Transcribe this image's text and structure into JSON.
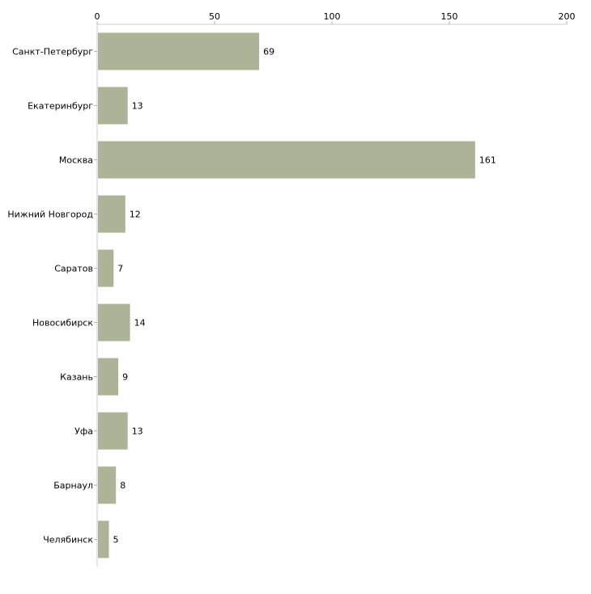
{
  "chart_data": {
    "type": "bar",
    "orientation": "horizontal",
    "title": "",
    "xlabel": "",
    "ylabel": "",
    "xlim": [
      0,
      200
    ],
    "x_ticks": [
      0,
      50,
      100,
      150,
      200
    ],
    "x_axis_position": "top",
    "grid": false,
    "categories": [
      "Санкт-Петербург",
      "Екатеринбург",
      "Москва",
      "Нижний Новгород",
      "Саратов",
      "Новосибирск",
      "Казань",
      "Уфа",
      "Барнаул",
      "Челябинск"
    ],
    "values": [
      69,
      13,
      161,
      12,
      7,
      14,
      9,
      13,
      8,
      5
    ],
    "bar_color": "#adb396",
    "axis_color": "#cccccc",
    "tick_color": "#b5b98f"
  }
}
